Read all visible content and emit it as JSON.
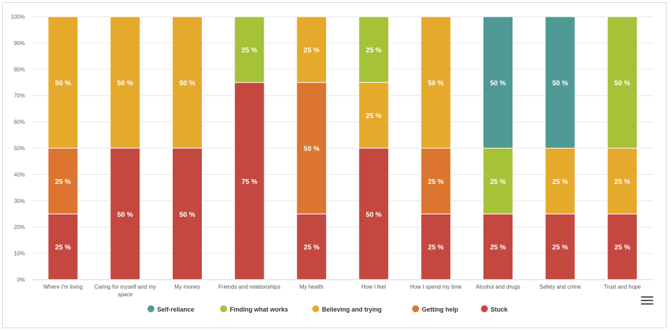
{
  "chart_data": {
    "type": "bar",
    "stacked": true,
    "percent": true,
    "categories": [
      "Where I'm living",
      "Caring for myself and my space",
      "My money",
      "Friends and relationships",
      "My health",
      "How I feel",
      "How I spend my time",
      "Alcohol and drugs",
      "Safety and crime",
      "Trust and hope"
    ],
    "series": [
      {
        "name": "Self-reliance",
        "color": "#4f9a94",
        "values": [
          0,
          0,
          0,
          0,
          0,
          0,
          0,
          50,
          50,
          0
        ]
      },
      {
        "name": "Finding what works",
        "color": "#a5c239",
        "values": [
          0,
          0,
          0,
          25,
          0,
          25,
          0,
          25,
          0,
          50
        ]
      },
      {
        "name": "Believing and trying",
        "color": "#e5a92c",
        "values": [
          50,
          50,
          50,
          0,
          25,
          25,
          50,
          0,
          25,
          25
        ]
      },
      {
        "name": "Getting help",
        "color": "#dc7530",
        "values": [
          25,
          0,
          0,
          0,
          50,
          0,
          25,
          0,
          0,
          0
        ]
      },
      {
        "name": "Stuck",
        "color": "#c4483f",
        "values": [
          25,
          50,
          50,
          75,
          25,
          50,
          25,
          25,
          25,
          25
        ]
      }
    ],
    "yticks": [
      "0%",
      "10%",
      "20%",
      "30%",
      "40%",
      "50%",
      "60%",
      "70%",
      "80%",
      "90%",
      "100%"
    ],
    "ylim": [
      0,
      100
    ],
    "data_label_suffix": " %",
    "grid": true,
    "legend": "bottom-center",
    "title": "",
    "xlabel": "",
    "ylabel": ""
  },
  "menu": {
    "icon": "hamburger-menu-icon"
  }
}
